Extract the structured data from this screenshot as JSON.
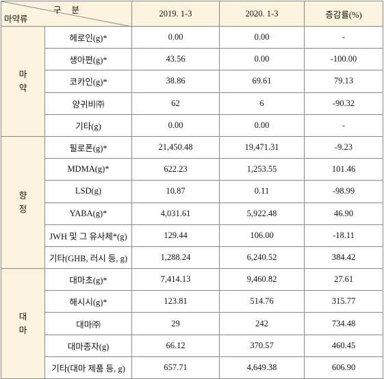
{
  "header": {
    "corner_top": "구 분",
    "corner_bottom": "마약류",
    "columns": [
      "2019. 1-3",
      "2020. 1-3",
      "증감률(%)"
    ]
  },
  "groups": [
    {
      "name": "마약",
      "rows": [
        [
          "헤로인(g)*",
          "0.00",
          "0.00",
          "-"
        ],
        [
          "생아편(g)*",
          "43.56",
          "0.00",
          "-100.00"
        ],
        [
          "코카인(g)*",
          "38.86",
          "69.61",
          "79.13"
        ],
        [
          "양귀비㈜",
          "62",
          "6",
          "-90.32"
        ],
        [
          "기타(g)",
          "0.00",
          "0.00",
          "-"
        ]
      ]
    },
    {
      "name": "향정",
      "rows": [
        [
          "필로폰(g)*",
          "21,450.48",
          "19,471.31",
          "-9.23"
        ],
        [
          "MDMA(g)*",
          "622.23",
          "1,253.55",
          "101.46"
        ],
        [
          "LSD(g)",
          "10.87",
          "0.11",
          "-98.99"
        ],
        [
          "YABA(g)*",
          "4,031.61",
          "5,922.48",
          "46.90"
        ],
        [
          "JWH 및 그 유사체*(g)",
          "129.44",
          "106.00",
          "-18.11"
        ],
        [
          "기타(GHB, 러시 등, g)",
          "1,288.24",
          "6,240.52",
          "384.42"
        ]
      ]
    },
    {
      "name": "대마",
      "rows": [
        [
          "대마초(g)*",
          "7,414.13",
          "9,460.82",
          "27.61"
        ],
        [
          "해시시(g)*",
          "123.81",
          "514.76",
          "315.77"
        ],
        [
          "대마㈜",
          "29",
          "242",
          "734.48"
        ],
        [
          "대마종자(g)",
          "66.12",
          "370.57",
          "460.45"
        ],
        [
          "기타(대마 제품 등, g)",
          "657.71",
          "4,649.38",
          "606.90"
        ]
      ]
    }
  ]
}
